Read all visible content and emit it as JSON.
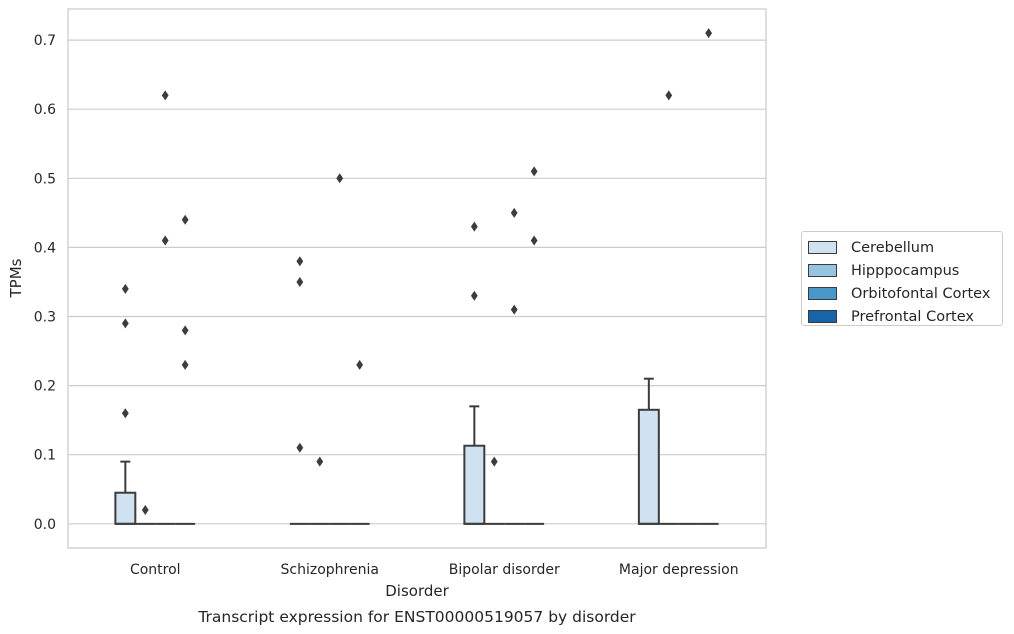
{
  "chart_data": {
    "type": "box",
    "caption": "Transcript expression for ENST00000519057 by disorder",
    "xlabel": "Disorder",
    "ylabel": "TPMs",
    "ylim": [
      -0.035,
      0.745
    ],
    "yticks": [
      0.0,
      0.1,
      0.2,
      0.3,
      0.4,
      0.5,
      0.6,
      0.7
    ],
    "ytick_labels": [
      "0.0",
      "0.1",
      "0.2",
      "0.3",
      "0.4",
      "0.5",
      "0.6",
      "0.7"
    ],
    "grid": "horizontal",
    "legend_position": "right",
    "categories": [
      "Control",
      "Schizophrenia",
      "Bipolar disorder",
      "Major depression"
    ],
    "series": [
      {
        "name": "Cerebellum",
        "color": "#d0e1f2",
        "boxes": [
          {
            "q1": 0.0,
            "median": 0.0,
            "q3": 0.045,
            "whisker_low": 0.0,
            "whisker_high": 0.09,
            "outliers": [
              0.16,
              0.29,
              0.34
            ]
          },
          {
            "q1": 0.0,
            "median": 0.0,
            "q3": 0.0,
            "whisker_low": 0.0,
            "whisker_high": 0.0,
            "outliers": [
              0.11,
              0.35,
              0.38
            ]
          },
          {
            "q1": 0.0,
            "median": 0.0,
            "q3": 0.113,
            "whisker_low": 0.0,
            "whisker_high": 0.17,
            "outliers": [
              0.33,
              0.43
            ]
          },
          {
            "q1": 0.0,
            "median": 0.0,
            "q3": 0.165,
            "whisker_low": 0.0,
            "whisker_high": 0.21,
            "outliers": []
          }
        ]
      },
      {
        "name": "Hipppocampus",
        "color": "#94c4df",
        "boxes": [
          {
            "q1": 0.0,
            "median": 0.0,
            "q3": 0.0,
            "whisker_low": 0.0,
            "whisker_high": 0.0,
            "outliers": [
              0.02
            ]
          },
          {
            "q1": 0.0,
            "median": 0.0,
            "q3": 0.0,
            "whisker_low": 0.0,
            "whisker_high": 0.0,
            "outliers": [
              0.09
            ]
          },
          {
            "q1": 0.0,
            "median": 0.0,
            "q3": 0.0,
            "whisker_low": 0.0,
            "whisker_high": 0.0,
            "outliers": [
              0.09
            ]
          },
          {
            "q1": 0.0,
            "median": 0.0,
            "q3": 0.0,
            "whisker_low": 0.0,
            "whisker_high": 0.0,
            "outliers": [
              0.62
            ]
          }
        ]
      },
      {
        "name": "Orbitofontal Cortex",
        "color": "#4a98c9",
        "boxes": [
          {
            "q1": 0.0,
            "median": 0.0,
            "q3": 0.0,
            "whisker_low": 0.0,
            "whisker_high": 0.0,
            "outliers": [
              0.41,
              0.62
            ]
          },
          {
            "q1": 0.0,
            "median": 0.0,
            "q3": 0.0,
            "whisker_low": 0.0,
            "whisker_high": 0.0,
            "outliers": [
              0.5
            ]
          },
          {
            "q1": 0.0,
            "median": 0.0,
            "q3": 0.0,
            "whisker_low": 0.0,
            "whisker_high": 0.0,
            "outliers": [
              0.31,
              0.45
            ]
          },
          {
            "q1": 0.0,
            "median": 0.0,
            "q3": 0.0,
            "whisker_low": 0.0,
            "whisker_high": 0.0,
            "outliers": []
          }
        ]
      },
      {
        "name": "Prefrontal Cortex",
        "color": "#1764ab",
        "boxes": [
          {
            "q1": 0.0,
            "median": 0.0,
            "q3": 0.0,
            "whisker_low": 0.0,
            "whisker_high": 0.0,
            "outliers": [
              0.23,
              0.28,
              0.44
            ]
          },
          {
            "q1": 0.0,
            "median": 0.0,
            "q3": 0.0,
            "whisker_low": 0.0,
            "whisker_high": 0.0,
            "outliers": [
              0.23
            ]
          },
          {
            "q1": 0.0,
            "median": 0.0,
            "q3": 0.0,
            "whisker_low": 0.0,
            "whisker_high": 0.0,
            "outliers": [
              0.41,
              0.51
            ]
          },
          {
            "q1": 0.0,
            "median": 0.0,
            "q3": 0.0,
            "whisker_low": 0.0,
            "whisker_high": 0.0,
            "outliers": [
              0.71
            ]
          }
        ]
      }
    ]
  }
}
